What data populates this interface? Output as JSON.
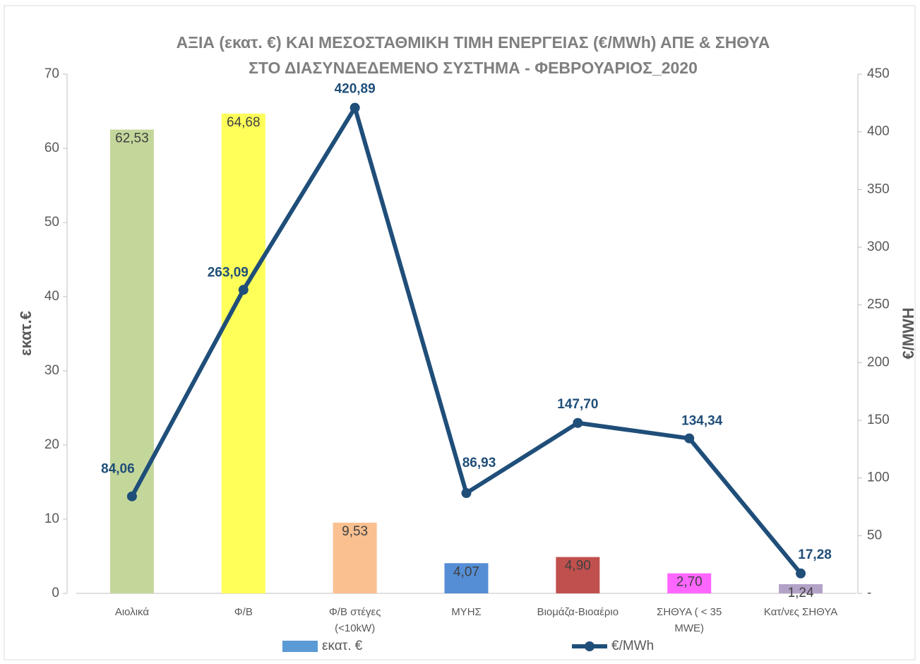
{
  "chart_data": {
    "type": "bar",
    "title": [
      "ΑΞΙΑ (εκατ. €) ΚΑΙ ΜΕΣΟΣΤΑΘΜΙΚΗ ΤΙΜΗ ΕΝΕΡΓΕΙΑΣ (€/MWh) ΑΠΕ & ΣΗΘΥΑ",
      "ΣΤΟ ΔΙΑΣΥΝΔΕΔΕΜΕΝΟ ΣΥΣΤΗΜΑ - ΦΕΒΡΟΥΑΡΙΟΣ_2020"
    ],
    "ylabel": "εκατ.€",
    "y2label": "€/MWH",
    "categories": [
      "Αιολικά",
      "Φ/Β",
      "Φ/Β στέγες (<10kW)",
      "ΜΥΗΣ",
      "Βιομάζα-Βιοαέριο",
      "ΣΗΘΥΑ ( < 35 MWE)",
      "Κατ/νες ΣΗΘΥΑ"
    ],
    "series": [
      {
        "name": "εκατ. €",
        "type": "bar",
        "color": "#5b9bd5",
        "colors": [
          "#c4d79b",
          "#ffff5a",
          "#fac090",
          "#558ed5",
          "#c0504d",
          "#ff66ff",
          "#b3a2c7"
        ],
        "values": [
          62.53,
          64.68,
          9.53,
          4.07,
          4.9,
          2.7,
          1.24
        ],
        "value_labels": [
          "62,53",
          "64,68",
          "9,53",
          "4,07",
          "4,90",
          "2,70",
          "1,24"
        ]
      },
      {
        "name": "€/MWh",
        "type": "line",
        "axis": "y2",
        "color": "#1f4e79",
        "values": [
          84.06,
          263.09,
          420.89,
          86.93,
          147.7,
          134.34,
          17.28
        ],
        "value_labels": [
          "84,06",
          "263,09",
          "420,89",
          "86,93",
          "147,70",
          "134,34",
          "17,28"
        ]
      }
    ],
    "ylim": [
      0,
      70
    ],
    "yticks": [
      0,
      10,
      20,
      30,
      40,
      50,
      60,
      70
    ],
    "y2lim": [
      0,
      450
    ],
    "y2ticks": [
      {
        "value": 0,
        "label": "-"
      },
      50,
      100,
      150,
      200,
      250,
      300,
      350,
      400,
      450
    ],
    "grid": false,
    "legend": "bottom"
  }
}
